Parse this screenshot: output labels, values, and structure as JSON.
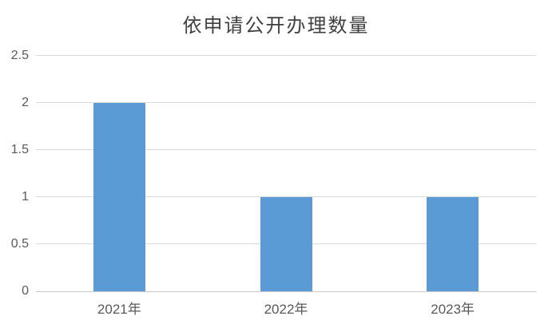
{
  "chart_data": {
    "type": "bar",
    "title": "依申请公开办理数量",
    "categories": [
      "2021年",
      "2022年",
      "2023年"
    ],
    "values": [
      2,
      1,
      1
    ],
    "xlabel": "",
    "ylabel": "",
    "ylim": [
      0,
      2.5
    ],
    "ytick_interval": 0.5,
    "yticks": [
      "0",
      "0.5",
      "1",
      "1.5",
      "2",
      "2.5"
    ],
    "grid": true,
    "legend_position": "none",
    "colors": {
      "bar": "#5B9BD5",
      "gridline": "#D9D9D9",
      "axis_line": "#C9C9C9",
      "tick_label": "#595959",
      "title": "#404040"
    }
  }
}
